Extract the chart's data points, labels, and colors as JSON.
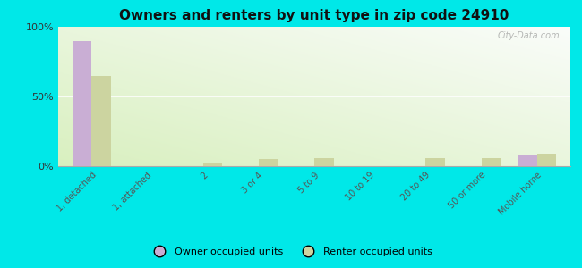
{
  "title": "Owners and renters by unit type in zip code 24910",
  "categories": [
    "1, detached",
    "1, attached",
    "2",
    "3 or 4",
    "5 to 9",
    "10 to 19",
    "20 to 49",
    "50 or more",
    "Mobile home"
  ],
  "owner_values": [
    90,
    0,
    0,
    0,
    0,
    0,
    0,
    0,
    8
  ],
  "renter_values": [
    65,
    0,
    2,
    5,
    6,
    0,
    6,
    6,
    9
  ],
  "owner_color": "#c9aed4",
  "renter_color": "#ccd4a0",
  "background_color": "#00e8e8",
  "ylim": [
    0,
    100
  ],
  "yticks": [
    0,
    50,
    100
  ],
  "ytick_labels": [
    "0%",
    "50%",
    "100%"
  ],
  "bar_width": 0.35,
  "legend_owner": "Owner occupied units",
  "legend_renter": "Renter occupied units",
  "watermark": "City-Data.com"
}
